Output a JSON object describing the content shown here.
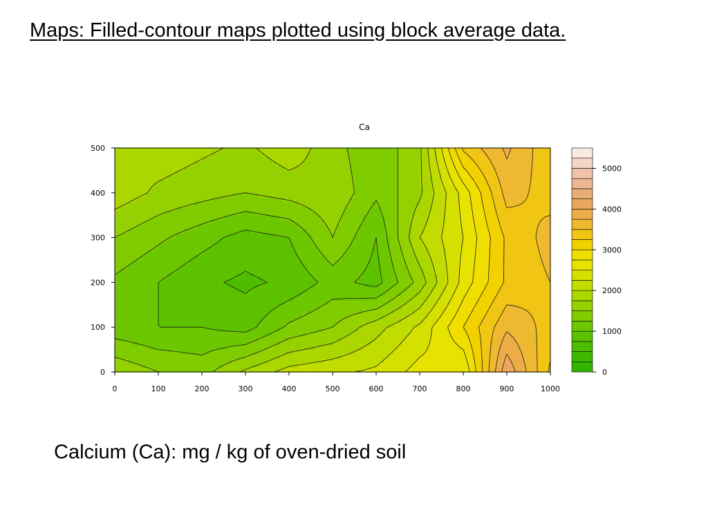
{
  "slide": {
    "title": "Maps: Filled-contour maps plotted using block average data.",
    "caption": "Calcium (Ca): mg / kg of oven-dried soil"
  },
  "chart_data": {
    "type": "heatmap",
    "style": "filled-contour",
    "title": "Ca",
    "xlabel": "",
    "ylabel": "",
    "xlim": [
      0,
      1000
    ],
    "ylim": [
      0,
      500
    ],
    "x_ticks": [
      "0",
      "100",
      "200",
      "300",
      "400",
      "500",
      "600",
      "700",
      "800",
      "900",
      "1000"
    ],
    "y_ticks": [
      "0",
      "100",
      "200",
      "300",
      "400",
      "500"
    ],
    "grid": false,
    "colorbar": {
      "position": "right",
      "range": [
        0,
        5500
      ],
      "step": 250,
      "tick_values": [
        0,
        1000,
        2000,
        3000,
        4000,
        5000
      ],
      "tick_labels": [
        "0",
        "1000",
        "2000",
        "3000",
        "4000",
        "5000"
      ],
      "colors": [
        "#33b400",
        "#3fb900",
        "#4dbd00",
        "#5cc200",
        "#6cc700",
        "#7fcc00",
        "#95d100",
        "#abd600",
        "#c1dc00",
        "#d6e000",
        "#e7e300",
        "#f0de00",
        "#f1d200",
        "#f0c514",
        "#eeb830",
        "#ecad48",
        "#eaa85e",
        "#e9ad78",
        "#ebb692",
        "#efc3aa",
        "#f4d5c8",
        "#f9ebe4"
      ]
    },
    "x": [
      0,
      100,
      200,
      300,
      400,
      500,
      600,
      700,
      800,
      900,
      1000
    ],
    "y": [
      0,
      100,
      200,
      300,
      400,
      500
    ],
    "z": [
      [
        1700,
        1500,
        1400,
        1800,
        2100,
        2200,
        2300,
        2600,
        2500,
        4200,
        3200
      ],
      [
        1100,
        1000,
        1000,
        900,
        1300,
        1500,
        1900,
        2300,
        3000,
        3700,
        3400
      ],
      [
        1200,
        1000,
        800,
        700,
        800,
        1100,
        900,
        1600,
        2600,
        3300,
        3500
      ],
      [
        1500,
        1300,
        1100,
        900,
        1000,
        1500,
        1000,
        2000,
        2500,
        3300,
        3600
      ],
      [
        1900,
        1700,
        1600,
        1500,
        1600,
        1700,
        1300,
        1700,
        2600,
        3600,
        3400
      ],
      [
        1800,
        1900,
        1800,
        1700,
        1900,
        1600,
        1300,
        1700,
        3300,
        3800,
        3300
      ]
    ]
  }
}
